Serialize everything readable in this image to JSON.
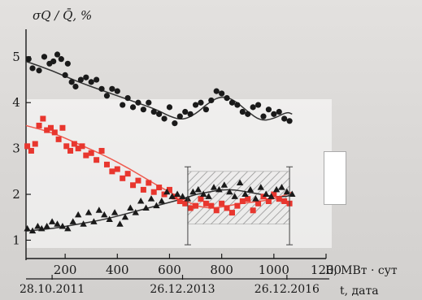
{
  "chart_data": {
    "type": "scatter",
    "title": "",
    "ylabel": "σQ / Q̄, %",
    "xlabel": "E, МВт · сут",
    "x2label": "t, дата",
    "xlim": [
      50,
      1200
    ],
    "ylim": [
      0.6,
      5.6
    ],
    "xticks": [
      200,
      400,
      600,
      800,
      1000,
      1200
    ],
    "xtick_labels": [
      "200",
      "400",
      "600",
      "800",
      "1000",
      "1200"
    ],
    "yticks": [
      1,
      2,
      3,
      4,
      5
    ],
    "ytick_labels": [
      "1",
      "2",
      "3",
      "4",
      "5"
    ],
    "date_ticks": [
      {
        "x": 150,
        "label": "28.10.2011"
      },
      {
        "x": 650,
        "label": "26.12.2013"
      },
      {
        "x": 1050,
        "label": "26.12.2016"
      }
    ],
    "hatch_region": {
      "x": [
        670,
        1060
      ],
      "y": [
        1.35,
        2.5
      ]
    },
    "error_bars": [
      {
        "x": 670,
        "y_low": 0.9,
        "y_high": 2.6
      },
      {
        "x": 1060,
        "y_low": 0.9,
        "y_high": 2.6
      }
    ],
    "colors": {
      "black": "#1a1a1a",
      "red": "#e8362e",
      "fit_red": "#ef5a4e",
      "fit_black": "#333333",
      "hatch": "#888888"
    },
    "series": [
      {
        "marker": "circle",
        "color": "#1a1a1a",
        "x": [
          60,
          75,
          100,
          120,
          140,
          155,
          170,
          185,
          200,
          210,
          225,
          240,
          260,
          280,
          300,
          320,
          340,
          360,
          380,
          400,
          420,
          440,
          460,
          480,
          500,
          520,
          540,
          560,
          580,
          600,
          620,
          640,
          660,
          680,
          700,
          720,
          740,
          760,
          780,
          800,
          820,
          840,
          860,
          880,
          900,
          920,
          940,
          960,
          980,
          1000,
          1020,
          1040,
          1060
        ],
        "y": [
          4.95,
          4.75,
          4.7,
          5.0,
          4.85,
          4.9,
          5.05,
          4.95,
          4.6,
          4.85,
          4.45,
          4.35,
          4.5,
          4.55,
          4.45,
          4.5,
          4.3,
          4.15,
          4.3,
          4.25,
          3.95,
          4.1,
          3.9,
          4.0,
          3.85,
          4.0,
          3.8,
          3.75,
          3.65,
          3.9,
          3.55,
          3.7,
          3.8,
          3.75,
          3.95,
          4.0,
          3.85,
          4.05,
          4.25,
          4.2,
          4.1,
          4.0,
          3.95,
          3.8,
          3.75,
          3.9,
          3.95,
          3.7,
          3.85,
          3.75,
          3.8,
          3.65,
          3.6
        ]
      },
      {
        "marker": "square",
        "color": "#e8362e",
        "x": [
          55,
          70,
          85,
          100,
          115,
          130,
          145,
          160,
          175,
          190,
          205,
          220,
          235,
          250,
          265,
          280,
          300,
          320,
          340,
          360,
          380,
          400,
          420,
          440,
          460,
          480,
          500,
          520,
          540,
          560,
          580,
          600,
          620,
          640,
          660,
          680,
          700,
          720,
          740,
          760,
          780,
          800,
          820,
          840,
          860,
          880,
          900,
          920,
          940,
          960,
          980,
          1000,
          1020,
          1040,
          1060
        ],
        "y": [
          3.05,
          2.95,
          3.1,
          3.5,
          3.65,
          3.4,
          3.45,
          3.35,
          3.2,
          3.45,
          3.05,
          2.95,
          3.1,
          3.0,
          3.05,
          2.85,
          2.9,
          2.75,
          2.95,
          2.65,
          2.5,
          2.55,
          2.35,
          2.45,
          2.2,
          2.3,
          2.1,
          2.25,
          2.05,
          2.15,
          2.0,
          2.1,
          1.95,
          1.85,
          1.8,
          1.7,
          1.75,
          1.9,
          1.8,
          1.75,
          1.65,
          1.8,
          1.7,
          1.6,
          1.75,
          1.85,
          1.9,
          1.65,
          1.8,
          1.95,
          1.85,
          2.0,
          1.9,
          1.85,
          1.8
        ]
      },
      {
        "marker": "triangle",
        "color": "#1a1a1a",
        "x": [
          55,
          75,
          95,
          110,
          130,
          150,
          170,
          190,
          210,
          230,
          250,
          270,
          290,
          310,
          330,
          350,
          370,
          390,
          410,
          430,
          450,
          470,
          490,
          510,
          530,
          550,
          570,
          590,
          610,
          630,
          650,
          670,
          690,
          710,
          730,
          750,
          770,
          790,
          810,
          830,
          850,
          870,
          890,
          910,
          930,
          950,
          970,
          990,
          1010,
          1030,
          1050,
          1070
        ],
        "y": [
          1.25,
          1.2,
          1.3,
          1.25,
          1.3,
          1.4,
          1.35,
          1.3,
          1.25,
          1.4,
          1.55,
          1.35,
          1.6,
          1.4,
          1.65,
          1.55,
          1.45,
          1.6,
          1.35,
          1.5,
          1.7,
          1.6,
          1.85,
          1.7,
          1.9,
          1.75,
          1.85,
          2.05,
          1.95,
          2.0,
          1.95,
          1.9,
          2.05,
          2.1,
          2.0,
          1.95,
          2.15,
          2.1,
          2.2,
          2.05,
          1.95,
          2.25,
          2.0,
          2.1,
          1.9,
          2.15,
          2.0,
          1.95,
          2.1,
          2.15,
          2.05,
          2.0
        ]
      }
    ],
    "fits": [
      {
        "color": "#333333",
        "x": [
          50,
          150,
          250,
          350,
          450,
          550,
          600,
          650,
          700,
          750,
          800,
          850,
          900,
          950,
          1000,
          1050,
          1070
        ],
        "y": [
          4.9,
          4.7,
          4.45,
          4.25,
          4.05,
          3.85,
          3.7,
          3.62,
          3.75,
          4.0,
          4.15,
          4.05,
          3.8,
          3.6,
          3.65,
          3.8,
          3.75
        ]
      },
      {
        "color": "#ef5a4e",
        "x": [
          50,
          150,
          250,
          350,
          450,
          550,
          650,
          700,
          750,
          800,
          850,
          900,
          950,
          1000,
          1050,
          1070
        ],
        "y": [
          3.5,
          3.35,
          3.1,
          2.85,
          2.55,
          2.2,
          1.9,
          1.75,
          1.7,
          1.72,
          1.78,
          1.82,
          1.85,
          1.9,
          2.0,
          2.05
        ]
      },
      {
        "color": "#333333",
        "x": [
          50,
          150,
          250,
          350,
          450,
          550,
          650,
          700,
          750,
          800,
          850,
          900,
          950,
          1000,
          1050,
          1070
        ],
        "y": [
          1.2,
          1.25,
          1.35,
          1.45,
          1.6,
          1.75,
          1.9,
          2.0,
          2.05,
          2.1,
          2.1,
          2.05,
          2.0,
          1.95,
          1.95,
          2.0
        ]
      }
    ]
  }
}
